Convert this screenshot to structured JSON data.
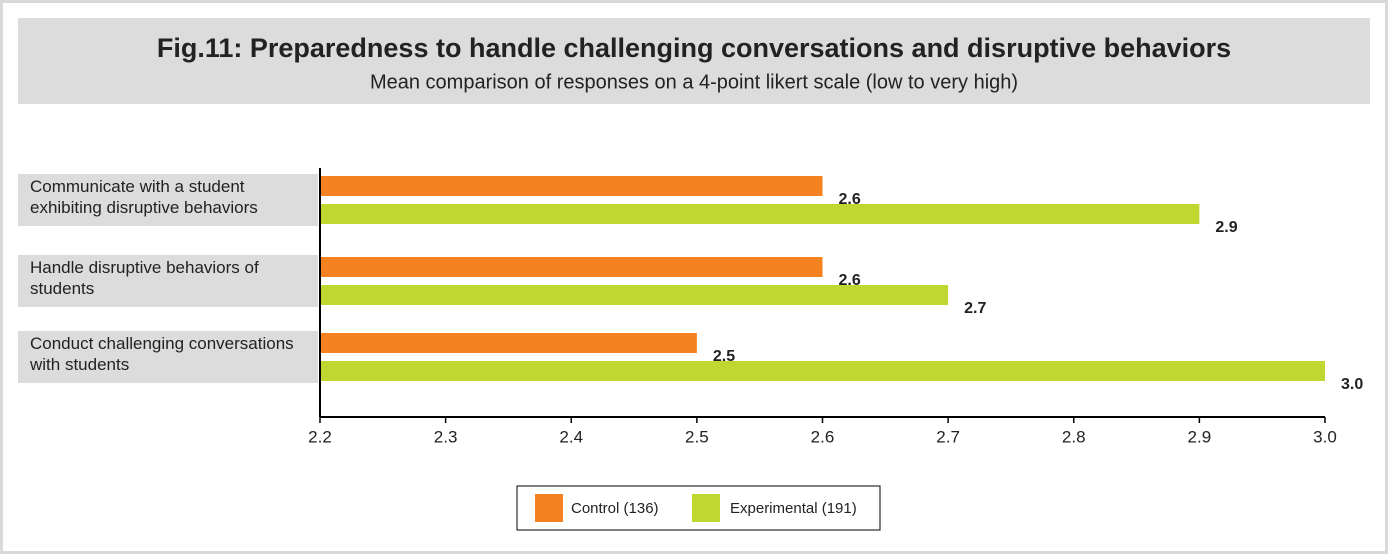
{
  "chart_data": {
    "type": "bar",
    "orientation": "horizontal",
    "title": "Fig.11: Preparedness to handle challenging conversations and disruptive behaviors",
    "subtitle": "Mean comparison of responses on a 4-point likert scale (low to very high)",
    "categories": [
      "Communicate with a student exhibiting disruptive behaviors",
      "Handle disruptive behaviors of students",
      "Conduct challenging conversations with students"
    ],
    "series": [
      {
        "name": "Control (136)",
        "color": "#f58220",
        "values": [
          2.6,
          2.6,
          2.5
        ]
      },
      {
        "name": "Experimental (191)",
        "color": "#bfd730",
        "values": [
          2.9,
          2.7,
          3.0
        ],
        "value_labels": [
          "2.9",
          "2.7",
          "3.0"
        ]
      }
    ],
    "xlim": [
      2.2,
      3.0
    ],
    "xticks": [
      2.2,
      2.3,
      2.4,
      2.5,
      2.6,
      2.7,
      2.8,
      2.9,
      {
        "value": 3.0,
        "label": "3.0"
      }
    ],
    "legend": "bottom"
  }
}
